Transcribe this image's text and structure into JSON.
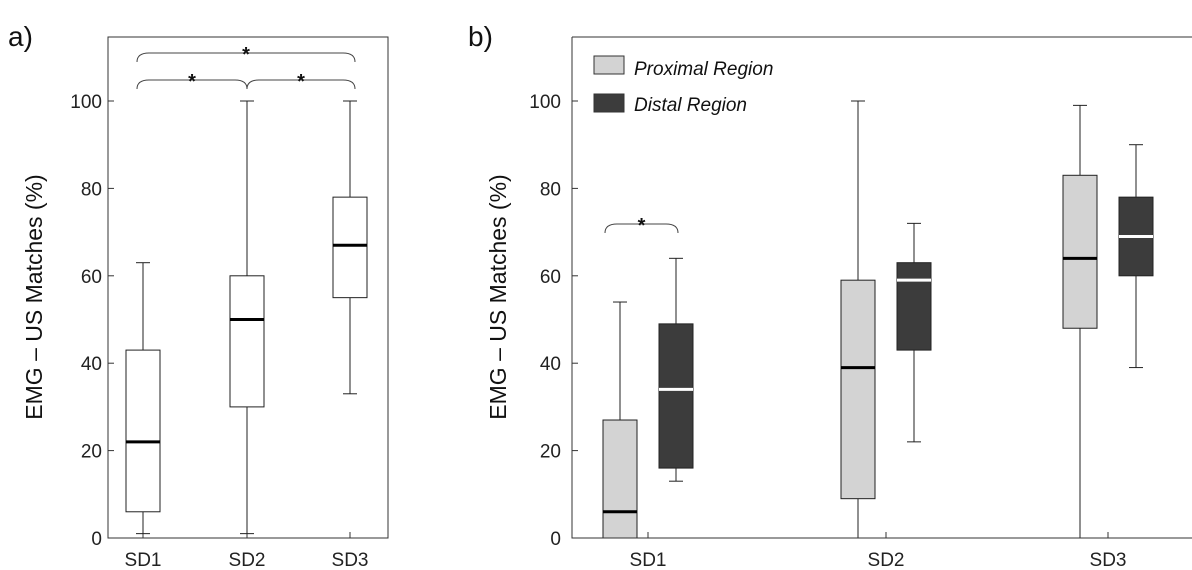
{
  "chart_data": [
    {
      "panel_label": "a)",
      "type": "boxplot",
      "ylabel": "EMG – US Matches (%)",
      "yticks": [
        0,
        20,
        40,
        60,
        80,
        100
      ],
      "ylim": [
        0,
        115
      ],
      "categories": [
        "SD1",
        "SD2",
        "SD3"
      ],
      "series": [
        {
          "fill": "#ffffff",
          "median_color": "#000000",
          "boxes": [
            {
              "min": 1,
              "q1": 6,
              "median": 22,
              "q3": 43,
              "max": 63
            },
            {
              "min": 1,
              "q1": 30,
              "median": 50,
              "q3": 60,
              "max": 100
            },
            {
              "min": 33,
              "q1": 55,
              "median": 67,
              "q3": 78,
              "max": 100
            }
          ]
        }
      ],
      "significance": [
        {
          "from": "SD1",
          "to": "SD3",
          "label": "*"
        },
        {
          "from": "SD1",
          "to": "SD2",
          "label": "*"
        },
        {
          "from": "SD2",
          "to": "SD3",
          "label": "*"
        }
      ]
    },
    {
      "panel_label": "b)",
      "type": "boxplot",
      "ylabel": "EMG – US Matches (%)",
      "yticks": [
        0,
        20,
        40,
        60,
        80,
        100
      ],
      "ylim": [
        0,
        115
      ],
      "categories": [
        "SD1",
        "SD2",
        "SD3"
      ],
      "legend": {
        "placement": "top-left"
      },
      "series": [
        {
          "name": "Proximal Region",
          "fill": "#d3d3d3",
          "median_color": "#000000",
          "boxes": [
            {
              "min": 0,
              "q1": 0,
              "median": 6,
              "q3": 27,
              "max": 54
            },
            {
              "min": 0,
              "q1": 9,
              "median": 39,
              "q3": 59,
              "max": 100
            },
            {
              "min": 0,
              "q1": 48,
              "median": 64,
              "q3": 83,
              "max": 99
            }
          ]
        },
        {
          "name": "Distal Region",
          "fill": "#3c3c3c",
          "median_color": "#ffffff",
          "boxes": [
            {
              "min": 13,
              "q1": 16,
              "median": 34,
              "q3": 49,
              "max": 64
            },
            {
              "min": 22,
              "q1": 43,
              "median": 59,
              "q3": 63,
              "max": 72
            },
            {
              "min": 39,
              "q1": 60,
              "median": 69,
              "q3": 78,
              "max": 90
            }
          ]
        }
      ],
      "significance": [
        {
          "category": "SD1",
          "between": [
            "Proximal Region",
            "Distal Region"
          ],
          "label": "*"
        }
      ]
    }
  ]
}
